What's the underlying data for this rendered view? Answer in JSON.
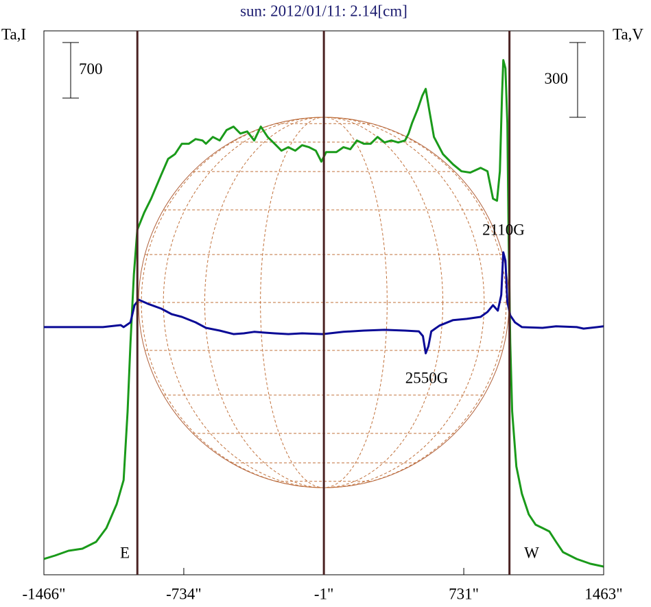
{
  "chart_data": {
    "type": "line",
    "title": "sun: 2012/01/11: 2.14[cm]",
    "y_label": "Ta,I",
    "y2_label": "Ta,V",
    "xlim": [
      -1466,
      1463
    ],
    "xticks": [
      {
        "value": -1466,
        "label": "-1466\""
      },
      {
        "value": -734,
        "label": "-734\""
      },
      {
        "value": -1,
        "label": "-1\""
      },
      {
        "value": 731,
        "label": "731\""
      },
      {
        "value": 1463,
        "label": "1463\""
      }
    ],
    "ylim": [
      0,
      6850
    ],
    "y2lim": [
      -994,
      1189
    ],
    "vertical_lines": [
      -977,
      -1,
      970
    ],
    "vertical_line_color": "#4a2222",
    "scale_bars": [
      {
        "value": 700,
        "axis": "y"
      },
      {
        "value": 300,
        "axis": "y2"
      }
    ],
    "annotations": [
      "E",
      "W",
      "2110G",
      "2550G"
    ],
    "series": [
      {
        "color": "#1a9a1a",
        "axis": "y",
        "x": [
          -1466,
          -1408,
          -1337,
          -1265,
          -1193,
          -1139,
          -1085,
          -1049,
          -1028,
          -1013,
          -995,
          -977,
          -941,
          -905,
          -852,
          -816,
          -780,
          -744,
          -708,
          -672,
          -636,
          -618,
          -582,
          -546,
          -510,
          -474,
          -438,
          -402,
          -366,
          -331,
          -295,
          -259,
          -223,
          -187,
          -151,
          -115,
          -79,
          -43,
          -14,
          11,
          65,
          101,
          137,
          172,
          208,
          244,
          280,
          316,
          352,
          388,
          424,
          442,
          460,
          489,
          514,
          532,
          550,
          575,
          622,
          675,
          719,
          765,
          819,
          855,
          884,
          905,
          920,
          931,
          938,
          949,
          959,
          966,
          974,
          984,
          1006,
          1035,
          1071,
          1107,
          1143,
          1179,
          1214,
          1250,
          1322,
          1394,
          1462
        ],
        "values": [
          199,
          242,
          302,
          328,
          415,
          588,
          890,
          1193,
          2057,
          2921,
          3786,
          4347,
          4563,
          4736,
          5039,
          5238,
          5298,
          5428,
          5428,
          5487,
          5470,
          5428,
          5514,
          5470,
          5601,
          5644,
          5557,
          5583,
          5470,
          5644,
          5514,
          5428,
          5341,
          5385,
          5341,
          5410,
          5385,
          5341,
          5203,
          5324,
          5324,
          5385,
          5359,
          5470,
          5428,
          5428,
          5514,
          5445,
          5470,
          5445,
          5470,
          5557,
          5687,
          5860,
          6033,
          6119,
          5860,
          5514,
          5298,
          5168,
          5082,
          5065,
          5125,
          5082,
          4736,
          4710,
          5082,
          6033,
          6482,
          6378,
          5687,
          4218,
          2921,
          2057,
          1366,
          1020,
          761,
          631,
          588,
          545,
          415,
          285,
          199,
          138,
          104
        ]
      },
      {
        "color": "#0a0a96",
        "axis": "y2",
        "x": [
          -1466,
          -1157,
          -1064,
          -1049,
          -1013,
          -992,
          -970,
          -923,
          -852,
          -798,
          -744,
          -672,
          -618,
          -546,
          -474,
          -420,
          -366,
          -259,
          -187,
          -115,
          -7,
          101,
          208,
          316,
          424,
          496,
          517,
          532,
          546,
          561,
          604,
          675,
          747,
          819,
          855,
          884,
          909,
          927,
          938,
          949,
          959,
          974,
          999,
          1035,
          1143,
          1214,
          1322,
          1358,
          1430,
          1462
        ],
        "values": [
          0,
          0,
          8,
          0,
          19,
          88,
          110,
          94,
          74,
          52,
          41,
          19,
          -3,
          -14,
          -28,
          -25,
          -19,
          -25,
          -28,
          -25,
          -28,
          -19,
          -14,
          -11,
          -14,
          -17,
          -36,
          -105,
          -77,
          -17,
          6,
          28,
          33,
          41,
          61,
          88,
          66,
          129,
          300,
          267,
          102,
          47,
          19,
          0,
          -3,
          3,
          0,
          -6,
          0,
          3
        ]
      }
    ]
  }
}
